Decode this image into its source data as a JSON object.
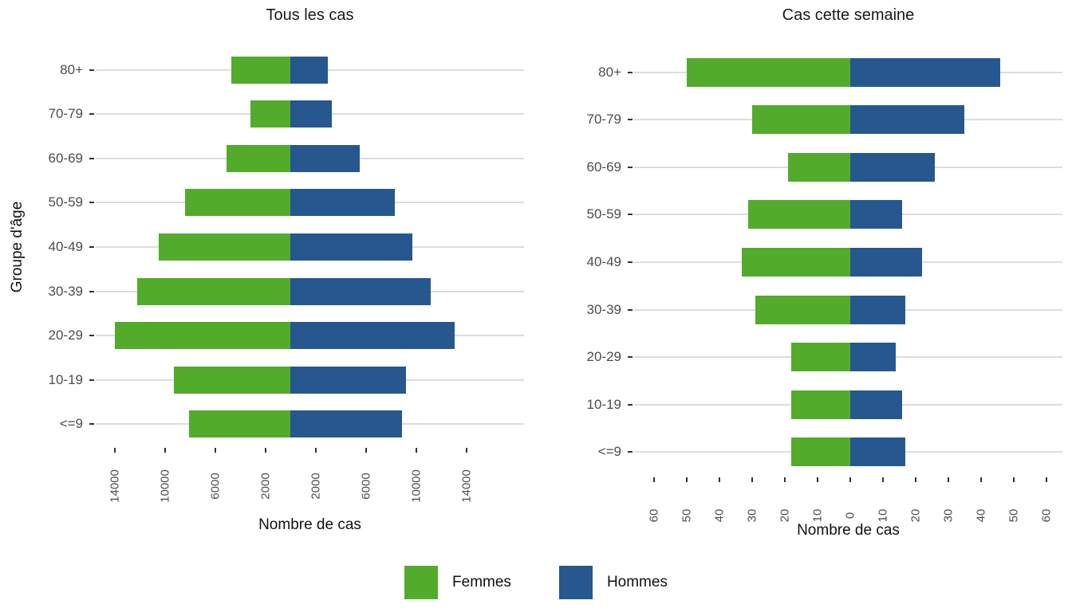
{
  "figure": {
    "y_axis_title": "Groupe d'âge",
    "background": "#ffffff",
    "gridline_color": "#dddddd",
    "tick_color": "#333333",
    "axis_text_color": "#4d4d4d"
  },
  "legend": {
    "items": [
      {
        "label": "Femmes",
        "color": "#53ab2c"
      },
      {
        "label": "Hommes",
        "color": "#26588f"
      }
    ]
  },
  "chart_data": [
    {
      "type": "bar",
      "subtype": "population-pyramid",
      "title": "Tous les cas",
      "xlabel": "Nombre de cas",
      "ylabel": "Groupe d'âge",
      "legend_position": "bottom",
      "grid": "horizontal-only",
      "categories": [
        "80+",
        "70-79",
        "60-69",
        "50-59",
        "40-49",
        "30-39",
        "20-29",
        "10-19",
        "<=9"
      ],
      "series": [
        {
          "name": "Femmes",
          "side": "left",
          "color": "#53ab2c",
          "values": [
            4700,
            3200,
            5100,
            8400,
            10500,
            12200,
            14000,
            9300,
            8100
          ]
        },
        {
          "name": "Hommes",
          "side": "right",
          "color": "#26588f",
          "values": [
            3000,
            3300,
            5500,
            8300,
            9700,
            11200,
            13100,
            9200,
            8900
          ]
        }
      ],
      "x_ticks": [
        -14000,
        -10000,
        -6000,
        -2000,
        2000,
        6000,
        10000,
        14000
      ],
      "x_tick_labels": [
        "14000",
        "10000",
        "6000",
        "2000",
        "2000",
        "6000",
        "10000",
        "14000"
      ],
      "xlim": [
        -15500,
        18600
      ]
    },
    {
      "type": "bar",
      "subtype": "population-pyramid",
      "title": "Cas cette semaine",
      "xlabel": "Nombre de cas",
      "ylabel": "Groupe d'âge",
      "legend_position": "bottom",
      "grid": "horizontal-only",
      "categories": [
        "80+",
        "70-79",
        "60-69",
        "50-59",
        "40-49",
        "30-39",
        "20-29",
        "10-19",
        "<=9"
      ],
      "series": [
        {
          "name": "Femmes",
          "side": "left",
          "color": "#53ab2c",
          "values": [
            50,
            30,
            19,
            31,
            33,
            29,
            18,
            18,
            18
          ]
        },
        {
          "name": "Hommes",
          "side": "right",
          "color": "#26588f",
          "values": [
            46,
            35,
            26,
            16,
            22,
            17,
            14,
            16,
            17
          ]
        }
      ],
      "x_ticks": [
        -60,
        -50,
        -40,
        -30,
        -20,
        -10,
        0,
        10,
        20,
        30,
        40,
        50,
        60
      ],
      "x_tick_labels": [
        "60",
        "50",
        "40",
        "30",
        "20",
        "10",
        "0",
        "10",
        "20",
        "30",
        "40",
        "50",
        "60"
      ],
      "xlim": [
        -66,
        65
      ]
    }
  ]
}
